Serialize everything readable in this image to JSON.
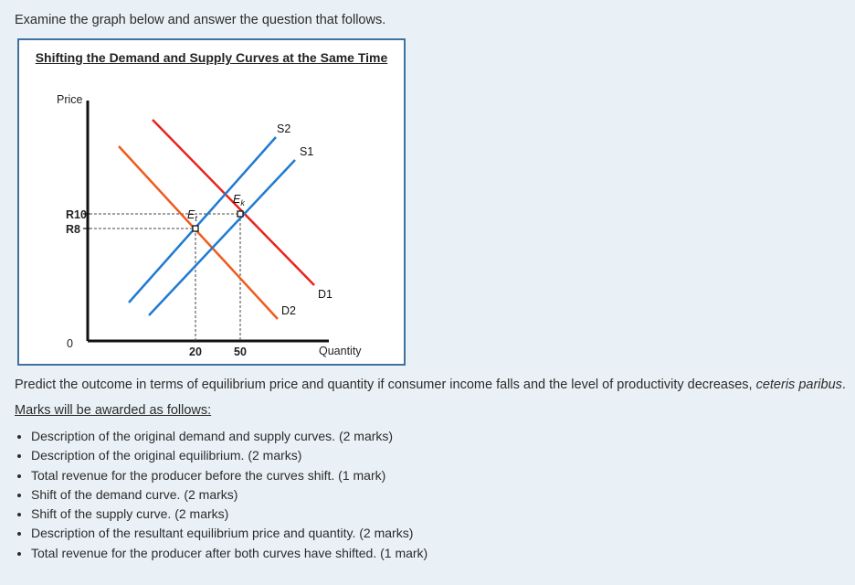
{
  "intro": "Examine the graph below and answer the question that follows.",
  "figure": {
    "title": "Shifting the Demand and Supply Curves at the Same Time",
    "y_axis_label": "Price",
    "x_axis_label": "Quantity",
    "origin_label": "0",
    "y_ticks": [
      "R10",
      "R8"
    ],
    "x_ticks": [
      "20",
      "50"
    ],
    "curves": {
      "s1": "S1",
      "s2": "S2",
      "d1": "D1",
      "d2": "D2"
    },
    "equilibria": {
      "e_k": "E",
      "e_k_sub": "k",
      "e_t": "E",
      "e_t_sub": "t"
    },
    "colors": {
      "demand_d1": "#e8231c",
      "demand_d2": "#f05a1e",
      "supply": "#1f7bd1",
      "frame": "#41719c"
    }
  },
  "question": {
    "text": "Predict the outcome in terms of equilibrium price and quantity if consumer income falls and the level of productivity decreases, ",
    "italic": "ceteris paribus",
    "end": "."
  },
  "marks_heading": "Marks will be awarded as follows:",
  "marks": [
    "Description of the original demand and supply curves. (2 marks)",
    "Description of the original equilibrium. (2 marks)",
    "Total revenue for the producer before the curves shift. (1 mark)",
    "Shift of the demand curve. (2 marks)",
    "Shift of the supply curve. (2 marks)",
    "Description of the resultant equilibrium price and quantity. (2 marks)",
    "Total revenue for the producer after both curves have shifted. (1 mark)"
  ]
}
